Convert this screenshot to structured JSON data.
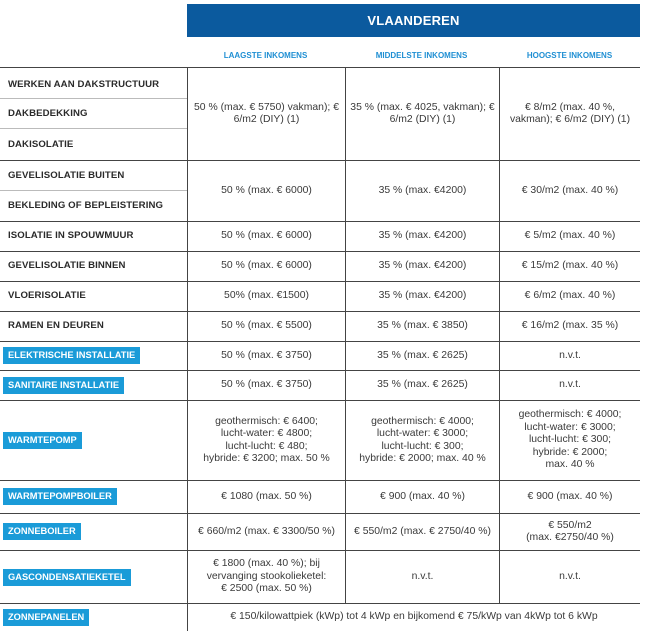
{
  "region": "VLAANDEREN",
  "columns": [
    "LAAGSTE INKOMENS",
    "MIDDELSTE INKOMENS",
    "HOOGSTE INKOMENS"
  ],
  "rows": [
    {
      "labels": [
        "WERKEN AAN DAKSTRUCTUUR",
        "DAKBEDEKKING",
        "DAKISOLATIE"
      ],
      "values": [
        "50 % (max. € 5750) vakman); € 6/m2 (DIY) (1)",
        "35 % (max. € 4025, vakman); € 6/m2 (DIY) (1)",
        "€ 8/m2 (max. 40 %, vakman); € 6/m2 (DIY) (1)"
      ]
    },
    {
      "labels": [
        "GEVELISOLATIE BUITEN",
        "BEKLEDING OF BEPLEISTERING"
      ],
      "values": [
        "50 % (max. € 6000)",
        "35 % (max. €4200)",
        "€ 30/m2 (max. 40 %)"
      ]
    },
    {
      "labels": [
        "ISOLATIE IN SPOUWMUUR"
      ],
      "values": [
        "50 % (max. € 6000)",
        "35 % (max. €4200)",
        "€ 5/m2 (max. 40 %)"
      ]
    },
    {
      "labels": [
        "GEVELISOLATIE BINNEN"
      ],
      "values": [
        "50 % (max. € 6000)",
        "35 % (max. €4200)",
        "€ 15/m2 (max. 40 %)"
      ]
    },
    {
      "labels": [
        "VLOERISOLATIE"
      ],
      "values": [
        "50% (max. €1500)",
        "35 % (max. €4200)",
        "€ 6/m2 (max. 40 %)"
      ]
    },
    {
      "labels": [
        "RAMEN EN DEUREN"
      ],
      "values": [
        "50 % (max. € 5500)",
        "35 % (max. € 3850)",
        "€ 16/m2 (max. 35 %)"
      ]
    },
    {
      "labels": [
        "ELEKTRISCHE INSTALLATIE"
      ],
      "values": [
        "50 % (max. € 3750)",
        "35 % (max. € 2625)",
        "n.v.t."
      ]
    },
    {
      "labels": [
        "SANITAIRE INSTALLATIE"
      ],
      "values": [
        "50 % (max. € 3750)",
        "35 % (max. € 2625)",
        "n.v.t."
      ]
    },
    {
      "labels": [
        "WARMTEPOMP"
      ],
      "values": [
        [
          "geothermisch: € 6400;",
          "lucht-water: € 4800;",
          "lucht-lucht: € 480;",
          "hybride: € 3200; max. 50 %"
        ],
        [
          "geothermisch: € 4000;",
          "lucht-water: € 3000;",
          "lucht-lucht: € 300;",
          "hybride: € 2000; max. 40 %"
        ],
        [
          "geothermisch: € 4000;",
          "lucht-water: € 3000;",
          "lucht-lucht: € 300;",
          "hybride: € 2000;",
          "max. 40 %"
        ]
      ]
    },
    {
      "labels": [
        "WARMTEPOMPBOILER"
      ],
      "values": [
        "€ 1080 (max. 50 %)",
        "€ 900 (max. 40 %)",
        "€ 900 (max. 40 %)"
      ]
    },
    {
      "labels": [
        "ZONNEBOILER"
      ],
      "values": [
        [
          "€ 660/m2 (max. € 3300/50 %)"
        ],
        [
          "€ 550/m2 (max. € 2750/40 %)"
        ],
        [
          "€ 550/m2",
          "(max. €2750/40 %)"
        ]
      ]
    },
    {
      "labels": [
        "GASCONDENSATIEKETEL"
      ],
      "values": [
        [
          "€ 1800 (max. 40 %); bij",
          "vervanging stookolieketel:",
          "€ 2500 (max. 50 %)"
        ],
        [
          "n.v.t."
        ],
        [
          "n.v.t."
        ]
      ]
    },
    {
      "labels": [
        "ZONNEPANELEN"
      ],
      "span": "€ 150/kilowattpiek (kWp) tot 4 kWp en bijkomend € 75/kWp van 4kWp tot 6 kWp"
    }
  ]
}
